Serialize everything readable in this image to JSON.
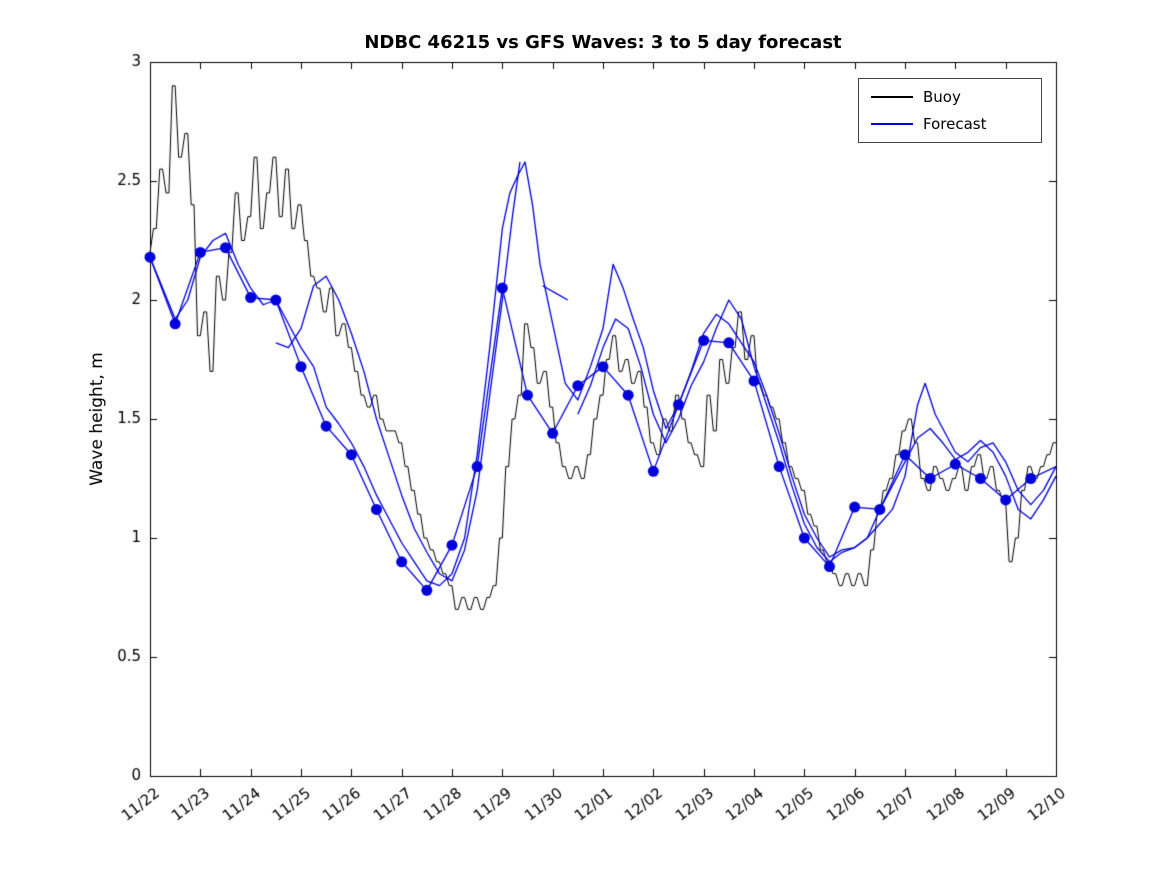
{
  "chart_data": {
    "type": "line",
    "title": "NDBC 46215 vs GFS Waves: 3 to 5 day forecast",
    "xlabel": "",
    "ylabel": "Wave height, m",
    "ylim": [
      0,
      3
    ],
    "yticks": [
      0,
      0.5,
      1,
      1.5,
      2,
      2.5,
      3
    ],
    "ytick_labels": [
      "0",
      "0.5",
      "1",
      "1.5",
      "2",
      "2.5",
      "3"
    ],
    "xlim_days": [
      0,
      18
    ],
    "xtick_days": [
      0,
      1,
      2,
      3,
      4,
      5,
      6,
      7,
      8,
      9,
      10,
      11,
      12,
      13,
      14,
      15,
      16,
      17,
      18
    ],
    "xtick_labels": [
      "11/22",
      "11/23",
      "11/24",
      "11/25",
      "11/26",
      "11/27",
      "11/28",
      "11/29",
      "11/30",
      "12/01",
      "12/02",
      "12/03",
      "12/04",
      "12/05",
      "12/06",
      "12/07",
      "12/08",
      "12/09",
      "12/10"
    ],
    "grid": false,
    "colors": {
      "buoy": "#000000",
      "forecast": "#0000dd",
      "marker": "#0000dd",
      "axis": "#000000"
    },
    "legend": {
      "position": "top-right",
      "entries": [
        {
          "label": "Buoy",
          "color": "#000000"
        },
        {
          "label": "Forecast",
          "color": "#0000dd"
        }
      ]
    },
    "series": {
      "buoy": {
        "name": "Buoy",
        "t_start": 0,
        "t_step": 0.125,
        "values": [
          2.2,
          2.3,
          2.55,
          2.45,
          2.9,
          2.6,
          2.7,
          2.4,
          1.85,
          1.95,
          1.7,
          2.1,
          2.0,
          2.2,
          2.45,
          2.25,
          2.35,
          2.6,
          2.3,
          2.45,
          2.6,
          2.35,
          2.55,
          2.3,
          2.4,
          2.25,
          2.1,
          2.05,
          1.95,
          2.05,
          1.85,
          1.9,
          1.8,
          1.7,
          1.6,
          1.55,
          1.6,
          1.5,
          1.45,
          1.45,
          1.4,
          1.3,
          1.2,
          1.1,
          1.0,
          0.95,
          0.9,
          0.85,
          0.8,
          0.7,
          0.75,
          0.7,
          0.75,
          0.7,
          0.75,
          0.8,
          1.0,
          1.3,
          1.5,
          1.6,
          1.9,
          1.8,
          1.65,
          1.7,
          1.55,
          1.4,
          1.3,
          1.25,
          1.3,
          1.25,
          1.35,
          1.5,
          1.6,
          1.75,
          1.85,
          1.7,
          1.75,
          1.65,
          1.7,
          1.55,
          1.4,
          1.35,
          1.5,
          1.45,
          1.6,
          1.5,
          1.4,
          1.35,
          1.3,
          1.6,
          1.45,
          1.75,
          1.65,
          1.8,
          1.95,
          1.75,
          1.85,
          1.65,
          1.6,
          1.55,
          1.5,
          1.4,
          1.3,
          1.25,
          1.2,
          1.1,
          1.05,
          0.95,
          0.9,
          0.85,
          0.8,
          0.85,
          0.8,
          0.85,
          0.8,
          0.95,
          1.1,
          1.2,
          1.25,
          1.35,
          1.45,
          1.5,
          1.4,
          1.25,
          1.2,
          1.3,
          1.25,
          1.2,
          1.25,
          1.3,
          1.2,
          1.3,
          1.35,
          1.25,
          1.3,
          1.2,
          1.15,
          0.9,
          1.0,
          1.2,
          1.3,
          1.25,
          1.3,
          1.35,
          1.4
        ]
      },
      "forecast_markers": {
        "name": "Forecast analysis points",
        "points": [
          [
            0,
            2.18
          ],
          [
            0.5,
            1.9
          ],
          [
            1,
            2.2
          ],
          [
            1.5,
            2.22
          ],
          [
            2,
            2.01
          ],
          [
            2.5,
            2.0
          ],
          [
            3,
            1.72
          ],
          [
            3.5,
            1.47
          ],
          [
            4,
            1.35
          ],
          [
            4.5,
            1.12
          ],
          [
            5,
            0.9
          ],
          [
            5.5,
            0.78
          ],
          [
            6,
            0.97
          ],
          [
            6.5,
            1.3
          ],
          [
            7,
            2.05
          ],
          [
            7.5,
            1.6
          ],
          [
            8,
            1.44
          ],
          [
            8.5,
            1.64
          ],
          [
            9,
            1.72
          ],
          [
            9.5,
            1.6
          ],
          [
            10,
            1.28
          ],
          [
            10.5,
            1.56
          ],
          [
            11,
            1.83
          ],
          [
            11.5,
            1.82
          ],
          [
            12,
            1.66
          ],
          [
            12.5,
            1.3
          ],
          [
            13,
            1.0
          ],
          [
            13.5,
            0.88
          ],
          [
            14,
            1.13
          ],
          [
            14.5,
            1.12
          ],
          [
            15,
            1.35
          ],
          [
            15.5,
            1.25
          ],
          [
            16,
            1.31
          ],
          [
            16.5,
            1.25
          ],
          [
            17,
            1.16
          ],
          [
            17.5,
            1.25
          ]
        ]
      },
      "forecast_lines": [
        {
          "name": "forecast-analysis",
          "points": [
            [
              0,
              2.18
            ],
            [
              0.5,
              1.9
            ],
            [
              1,
              2.2
            ],
            [
              1.5,
              2.22
            ],
            [
              2,
              2.01
            ],
            [
              2.5,
              2.0
            ],
            [
              3,
              1.72
            ],
            [
              3.5,
              1.47
            ],
            [
              4,
              1.35
            ],
            [
              4.5,
              1.12
            ],
            [
              5,
              0.9
            ],
            [
              5.5,
              0.78
            ],
            [
              6,
              0.97
            ],
            [
              6.5,
              1.3
            ],
            [
              7,
              2.05
            ],
            [
              7.5,
              1.6
            ],
            [
              8,
              1.44
            ],
            [
              8.5,
              1.64
            ],
            [
              9,
              1.72
            ],
            [
              9.5,
              1.6
            ],
            [
              10,
              1.28
            ],
            [
              10.5,
              1.56
            ],
            [
              11,
              1.83
            ],
            [
              11.5,
              1.82
            ],
            [
              12,
              1.66
            ],
            [
              12.5,
              1.3
            ],
            [
              13,
              1.0
            ],
            [
              13.5,
              0.88
            ],
            [
              14,
              1.13
            ],
            [
              14.5,
              1.12
            ],
            [
              15,
              1.35
            ],
            [
              15.5,
              1.25
            ],
            [
              16,
              1.31
            ],
            [
              16.5,
              1.25
            ],
            [
              17,
              1.16
            ],
            [
              17.5,
              1.25
            ],
            [
              18,
              1.3
            ]
          ]
        },
        {
          "name": "forecast-run-b",
          "points": [
            [
              0,
              2.18
            ],
            [
              0.25,
              2.05
            ],
            [
              0.5,
              1.92
            ],
            [
              0.75,
              2.0
            ],
            [
              1,
              2.18
            ],
            [
              1.25,
              2.25
            ],
            [
              1.5,
              2.28
            ],
            [
              1.75,
              2.15
            ],
            [
              2,
              2.05
            ],
            [
              2.25,
              1.98
            ],
            [
              2.5,
              2.0
            ],
            [
              2.75,
              1.9
            ],
            [
              3,
              1.8
            ],
            [
              3.25,
              1.72
            ],
            [
              3.5,
              1.55
            ],
            [
              3.75,
              1.48
            ],
            [
              4,
              1.4
            ],
            [
              4.25,
              1.3
            ],
            [
              4.5,
              1.18
            ],
            [
              4.75,
              1.08
            ],
            [
              5,
              0.98
            ],
            [
              5.25,
              0.9
            ],
            [
              5.5,
              0.82
            ],
            [
              5.75,
              0.8
            ],
            [
              6,
              0.85
            ],
            [
              6.25,
              1.0
            ],
            [
              6.5,
              1.35
            ],
            [
              6.75,
              1.8
            ],
            [
              7,
              2.3
            ],
            [
              7.15,
              2.45
            ],
            [
              7.3,
              2.52
            ],
            [
              7.45,
              2.58
            ],
            [
              7.6,
              2.4
            ],
            [
              7.75,
              2.15
            ],
            [
              8,
              1.9
            ],
            [
              8.25,
              1.65
            ],
            [
              8.5,
              1.58
            ],
            [
              8.75,
              1.72
            ],
            [
              9,
              1.88
            ],
            [
              9.2,
              2.15
            ],
            [
              9.4,
              2.05
            ],
            [
              9.6,
              1.92
            ],
            [
              9.8,
              1.8
            ],
            [
              10,
              1.62
            ],
            [
              10.25,
              1.46
            ],
            [
              10.5,
              1.56
            ],
            [
              10.75,
              1.7
            ],
            [
              11,
              1.86
            ],
            [
              11.25,
              1.94
            ],
            [
              11.5,
              1.9
            ],
            [
              11.75,
              1.82
            ],
            [
              12,
              1.74
            ],
            [
              12.25,
              1.6
            ],
            [
              12.5,
              1.44
            ],
            [
              12.75,
              1.26
            ],
            [
              13,
              1.1
            ],
            [
              13.25,
              1.0
            ],
            [
              13.5,
              0.92
            ],
            [
              13.75,
              0.95
            ],
            [
              14,
              0.96
            ],
            [
              14.25,
              1.0
            ],
            [
              14.5,
              1.06
            ],
            [
              14.75,
              1.12
            ],
            [
              15,
              1.26
            ],
            [
              15.25,
              1.56
            ],
            [
              15.4,
              1.65
            ],
            [
              15.6,
              1.52
            ],
            [
              15.8,
              1.44
            ],
            [
              16,
              1.36
            ],
            [
              16.25,
              1.32
            ],
            [
              16.5,
              1.38
            ],
            [
              16.75,
              1.4
            ],
            [
              17,
              1.32
            ],
            [
              17.25,
              1.2
            ],
            [
              17.5,
              1.14
            ],
            [
              17.75,
              1.2
            ],
            [
              18,
              1.3
            ]
          ]
        },
        {
          "name": "forecast-run-c1",
          "points": [
            [
              2.5,
              1.82
            ],
            [
              2.75,
              1.8
            ],
            [
              3,
              1.88
            ],
            [
              3.25,
              2.06
            ],
            [
              3.5,
              2.1
            ],
            [
              3.75,
              2.0
            ],
            [
              4,
              1.86
            ],
            [
              4.25,
              1.7
            ],
            [
              4.5,
              1.5
            ],
            [
              4.75,
              1.34
            ],
            [
              5,
              1.18
            ],
            [
              5.25,
              1.04
            ],
            [
              5.5,
              0.94
            ],
            [
              5.75,
              0.85
            ],
            [
              6,
              0.82
            ],
            [
              6.25,
              0.95
            ],
            [
              6.5,
              1.2
            ],
            [
              6.75,
              1.6
            ],
            [
              7,
              2.0
            ],
            [
              7.2,
              2.35
            ],
            [
              7.35,
              2.58
            ]
          ]
        },
        {
          "name": "forecast-run-c2",
          "points": [
            [
              7.8,
              2.06
            ],
            [
              8.05,
              2.03
            ],
            [
              8.3,
              2.0
            ]
          ]
        },
        {
          "name": "forecast-run-c3",
          "points": [
            [
              8.5,
              1.52
            ],
            [
              8.75,
              1.64
            ],
            [
              9,
              1.8
            ],
            [
              9.25,
              1.92
            ],
            [
              9.5,
              1.88
            ],
            [
              9.75,
              1.72
            ],
            [
              10,
              1.52
            ],
            [
              10.25,
              1.4
            ],
            [
              10.5,
              1.5
            ],
            [
              10.75,
              1.64
            ],
            [
              11,
              1.74
            ],
            [
              11.25,
              1.88
            ],
            [
              11.5,
              2.0
            ],
            [
              11.75,
              1.92
            ],
            [
              12,
              1.72
            ],
            [
              12.25,
              1.56
            ],
            [
              12.5,
              1.4
            ],
            [
              12.75,
              1.22
            ],
            [
              13,
              1.06
            ],
            [
              13.25,
              0.96
            ],
            [
              13.5,
              0.9
            ],
            [
              13.75,
              0.94
            ],
            [
              14,
              0.96
            ],
            [
              14.25,
              1.0
            ],
            [
              14.5,
              1.12
            ],
            [
              14.75,
              1.22
            ],
            [
              15,
              1.32
            ],
            [
              15.25,
              1.42
            ],
            [
              15.5,
              1.46
            ],
            [
              15.75,
              1.4
            ],
            [
              16,
              1.33
            ],
            [
              16.25,
              1.36
            ],
            [
              16.5,
              1.41
            ],
            [
              16.75,
              1.36
            ],
            [
              17,
              1.26
            ],
            [
              17.25,
              1.12
            ],
            [
              17.5,
              1.08
            ],
            [
              17.75,
              1.16
            ],
            [
              18,
              1.26
            ]
          ]
        }
      ]
    }
  }
}
